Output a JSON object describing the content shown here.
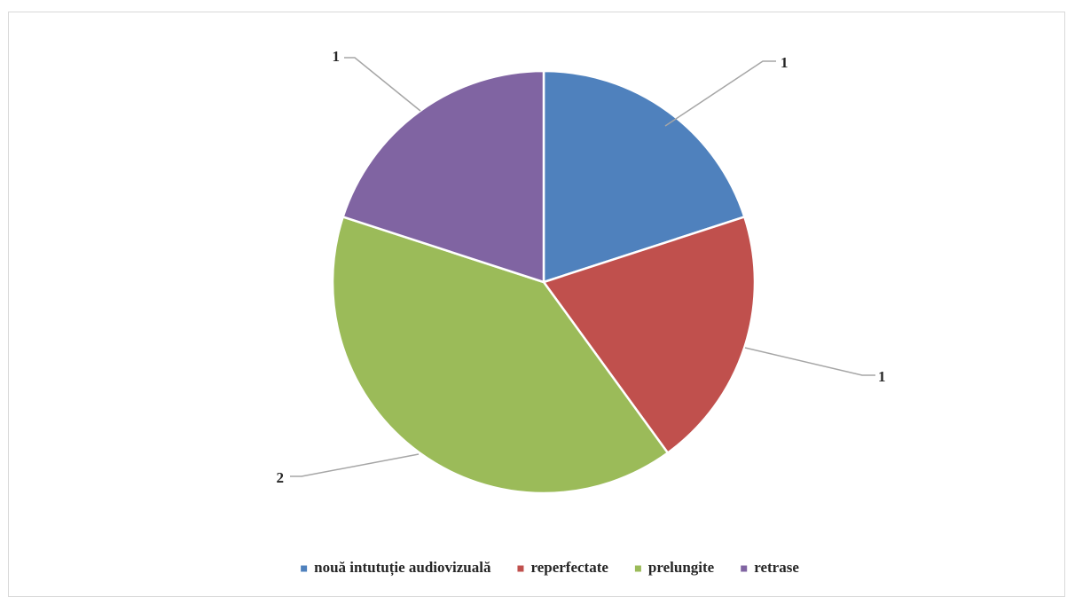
{
  "chart_data": {
    "type": "pie",
    "title": "",
    "categories": [
      "nouă intutuție audiovizuală",
      "reperfectate",
      "prelungite",
      "retrase"
    ],
    "values": [
      1,
      1,
      2,
      1
    ],
    "colors": [
      "#4f81bd",
      "#c0504d",
      "#9bbb59",
      "#8064a2"
    ],
    "data_labels": [
      "1",
      "1",
      "2",
      "1"
    ],
    "legend_position": "bottom",
    "start_angle_deg": 0,
    "direction": "clockwise"
  }
}
